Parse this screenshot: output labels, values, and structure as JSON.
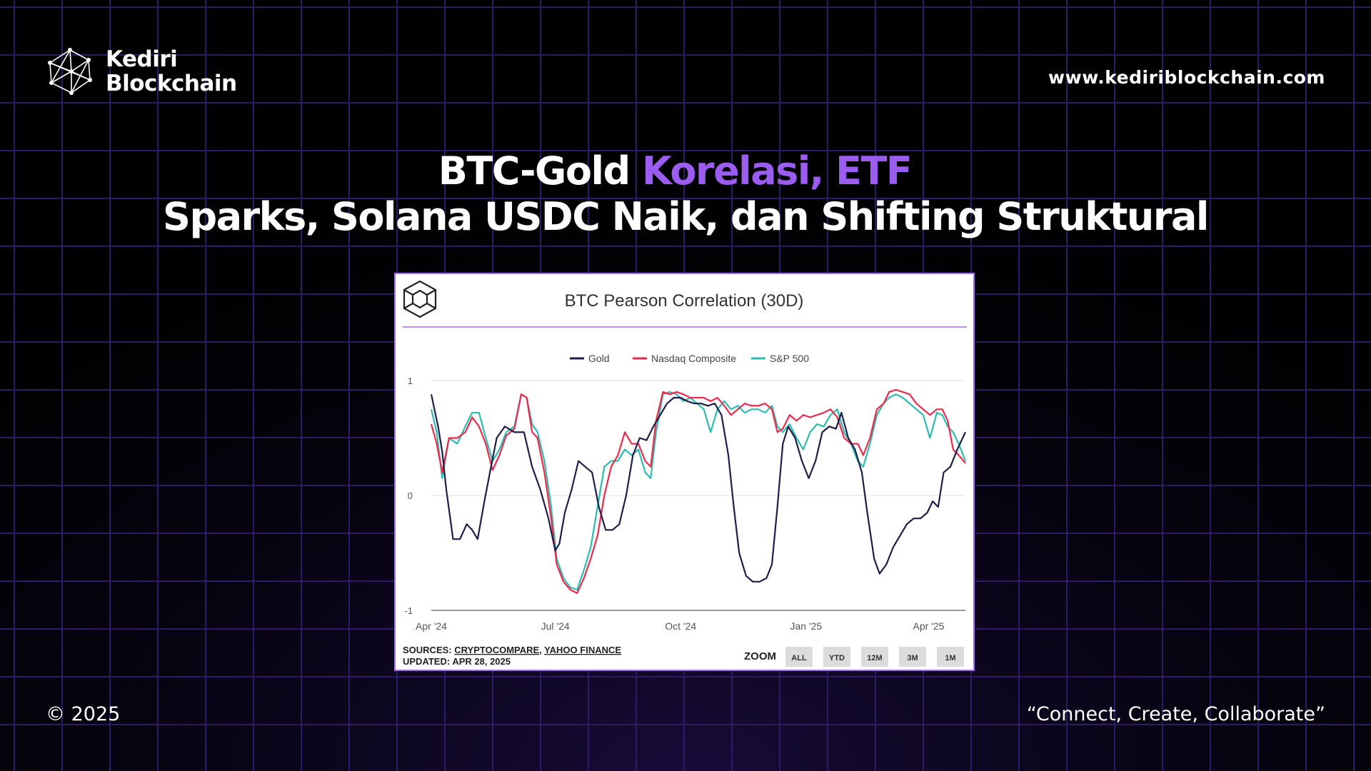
{
  "brand": {
    "name_line1": "Kediri",
    "name_line2": "Blockchain",
    "logo_icon": "network-polyhedron-icon"
  },
  "website": "www.kediriblockchain.com",
  "headline": {
    "line1_white": "BTC-Gold ",
    "line1_accent": "Korelasi, ETF",
    "line2": "Sparks, Solana USDC Naik, dan Shifting Struktural"
  },
  "footer": {
    "copyright": "© 2025",
    "tagline": "“Connect, Create, Collaborate”"
  },
  "colors": {
    "accent": "#9b5cf0",
    "background": "#000000",
    "grid": "#2e1b66",
    "card_border": "#a66bf0"
  },
  "chart_data": {
    "type": "line",
    "title": "BTC Pearson Correlation (30D)",
    "x_labels": [
      "Apr '24",
      "Jul '24",
      "Oct '24",
      "Jan '25",
      "Apr '25"
    ],
    "x_label_dates": [
      "2024-04-01",
      "2024-07-01",
      "2024-10-01",
      "2025-01-01",
      "2025-04-01"
    ],
    "x_range": [
      "2024-04-01",
      "2025-04-28"
    ],
    "y_ticks": [
      1,
      0,
      -1
    ],
    "ylim": [
      -1,
      1
    ],
    "legend_position": "top-center",
    "sources_prefix": "SOURCES: ",
    "sources": [
      "CRYPTOCOMPARE",
      "YAHOO FINANCE"
    ],
    "updated": "UPDATED: APR 28, 2025",
    "zoom_label": "ZOOM",
    "zoom_buttons": [
      "ALL",
      "YTD",
      "12M",
      "3M",
      "1M"
    ],
    "series": [
      {
        "name": "Gold",
        "color": "#1e1e4a",
        "points": [
          [
            "2024-04-01",
            0.88
          ],
          [
            "2024-04-06",
            0.6
          ],
          [
            "2024-04-09",
            0.38
          ],
          [
            "2024-04-12",
            0.05
          ],
          [
            "2024-04-17",
            -0.38
          ],
          [
            "2024-04-22",
            -0.38
          ],
          [
            "2024-04-27",
            -0.25
          ],
          [
            "2024-05-01",
            -0.3
          ],
          [
            "2024-05-05",
            -0.38
          ],
          [
            "2024-05-10",
            -0.05
          ],
          [
            "2024-05-14",
            0.2
          ],
          [
            "2024-05-19",
            0.5
          ],
          [
            "2024-05-25",
            0.6
          ],
          [
            "2024-06-01",
            0.55
          ],
          [
            "2024-06-08",
            0.55
          ],
          [
            "2024-06-14",
            0.25
          ],
          [
            "2024-06-20",
            0.05
          ],
          [
            "2024-06-26",
            -0.2
          ],
          [
            "2024-07-01",
            -0.48
          ],
          [
            "2024-07-04",
            -0.42
          ],
          [
            "2024-07-08",
            -0.15
          ],
          [
            "2024-07-13",
            0.05
          ],
          [
            "2024-07-18",
            0.3
          ],
          [
            "2024-07-23",
            0.25
          ],
          [
            "2024-07-28",
            0.2
          ],
          [
            "2024-08-02",
            -0.1
          ],
          [
            "2024-08-07",
            -0.3
          ],
          [
            "2024-08-12",
            -0.3
          ],
          [
            "2024-08-17",
            -0.25
          ],
          [
            "2024-08-22",
            0.0
          ],
          [
            "2024-08-27",
            0.35
          ],
          [
            "2024-09-01",
            0.5
          ],
          [
            "2024-09-06",
            0.48
          ],
          [
            "2024-09-11",
            0.6
          ],
          [
            "2024-09-16",
            0.7
          ],
          [
            "2024-09-21",
            0.8
          ],
          [
            "2024-09-26",
            0.85
          ],
          [
            "2024-10-01",
            0.85
          ],
          [
            "2024-10-06",
            0.82
          ],
          [
            "2024-10-11",
            0.8
          ],
          [
            "2024-10-16",
            0.8
          ],
          [
            "2024-10-21",
            0.78
          ],
          [
            "2024-10-26",
            0.8
          ],
          [
            "2024-10-31",
            0.7
          ],
          [
            "2024-11-05",
            0.35
          ],
          [
            "2024-11-09",
            -0.1
          ],
          [
            "2024-11-13",
            -0.5
          ],
          [
            "2024-11-18",
            -0.7
          ],
          [
            "2024-11-23",
            -0.75
          ],
          [
            "2024-11-28",
            -0.75
          ],
          [
            "2024-12-03",
            -0.72
          ],
          [
            "2024-12-07",
            -0.6
          ],
          [
            "2024-12-11",
            -0.1
          ],
          [
            "2024-12-15",
            0.45
          ],
          [
            "2024-12-19",
            0.6
          ],
          [
            "2024-12-24",
            0.5
          ],
          [
            "2024-12-29",
            0.3
          ],
          [
            "2025-01-03",
            0.15
          ],
          [
            "2025-01-08",
            0.3
          ],
          [
            "2025-01-13",
            0.55
          ],
          [
            "2025-01-18",
            0.6
          ],
          [
            "2025-01-23",
            0.58
          ],
          [
            "2025-01-27",
            0.72
          ],
          [
            "2025-02-01",
            0.5
          ],
          [
            "2025-02-06",
            0.4
          ],
          [
            "2025-02-11",
            0.2
          ],
          [
            "2025-02-15",
            -0.15
          ],
          [
            "2025-02-20",
            -0.55
          ],
          [
            "2025-02-24",
            -0.68
          ],
          [
            "2025-03-01",
            -0.6
          ],
          [
            "2025-03-06",
            -0.45
          ],
          [
            "2025-03-11",
            -0.35
          ],
          [
            "2025-03-16",
            -0.25
          ],
          [
            "2025-03-21",
            -0.2
          ],
          [
            "2025-03-26",
            -0.2
          ],
          [
            "2025-03-31",
            -0.15
          ],
          [
            "2025-04-04",
            -0.05
          ],
          [
            "2025-04-08",
            -0.1
          ],
          [
            "2025-04-12",
            0.2
          ],
          [
            "2025-04-17",
            0.25
          ],
          [
            "2025-04-22",
            0.4
          ],
          [
            "2025-04-28",
            0.55
          ]
        ]
      },
      {
        "name": "Nasdaq Composite",
        "color": "#ee2a4c",
        "points": [
          [
            "2024-04-01",
            0.62
          ],
          [
            "2024-04-05",
            0.45
          ],
          [
            "2024-04-09",
            0.2
          ],
          [
            "2024-04-14",
            0.5
          ],
          [
            "2024-04-20",
            0.5
          ],
          [
            "2024-04-26",
            0.55
          ],
          [
            "2024-05-01",
            0.68
          ],
          [
            "2024-05-06",
            0.6
          ],
          [
            "2024-05-11",
            0.45
          ],
          [
            "2024-05-16",
            0.22
          ],
          [
            "2024-05-21",
            0.35
          ],
          [
            "2024-05-26",
            0.52
          ],
          [
            "2024-06-01",
            0.58
          ],
          [
            "2024-06-06",
            0.88
          ],
          [
            "2024-06-10",
            0.85
          ],
          [
            "2024-06-14",
            0.55
          ],
          [
            "2024-06-18",
            0.5
          ],
          [
            "2024-06-23",
            0.2
          ],
          [
            "2024-06-28",
            -0.2
          ],
          [
            "2024-07-02",
            -0.6
          ],
          [
            "2024-07-07",
            -0.75
          ],
          [
            "2024-07-12",
            -0.82
          ],
          [
            "2024-07-17",
            -0.85
          ],
          [
            "2024-07-22",
            -0.72
          ],
          [
            "2024-07-27",
            -0.55
          ],
          [
            "2024-08-01",
            -0.35
          ],
          [
            "2024-08-06",
            0.0
          ],
          [
            "2024-08-11",
            0.25
          ],
          [
            "2024-08-16",
            0.35
          ],
          [
            "2024-08-21",
            0.55
          ],
          [
            "2024-08-26",
            0.45
          ],
          [
            "2024-08-31",
            0.45
          ],
          [
            "2024-09-05",
            0.3
          ],
          [
            "2024-09-09",
            0.25
          ],
          [
            "2024-09-13",
            0.65
          ],
          [
            "2024-09-18",
            0.9
          ],
          [
            "2024-09-23",
            0.88
          ],
          [
            "2024-09-28",
            0.9
          ],
          [
            "2024-10-03",
            0.88
          ],
          [
            "2024-10-08",
            0.85
          ],
          [
            "2024-10-13",
            0.85
          ],
          [
            "2024-10-18",
            0.85
          ],
          [
            "2024-10-23",
            0.82
          ],
          [
            "2024-10-28",
            0.85
          ],
          [
            "2024-11-02",
            0.78
          ],
          [
            "2024-11-07",
            0.7
          ],
          [
            "2024-11-12",
            0.75
          ],
          [
            "2024-11-17",
            0.8
          ],
          [
            "2024-11-22",
            0.78
          ],
          [
            "2024-11-27",
            0.78
          ],
          [
            "2024-12-02",
            0.8
          ],
          [
            "2024-12-07",
            0.75
          ],
          [
            "2024-12-11",
            0.55
          ],
          [
            "2024-12-15",
            0.58
          ],
          [
            "2024-12-20",
            0.7
          ],
          [
            "2024-12-25",
            0.65
          ],
          [
            "2024-12-30",
            0.7
          ],
          [
            "2025-01-04",
            0.68
          ],
          [
            "2025-01-09",
            0.7
          ],
          [
            "2025-01-14",
            0.72
          ],
          [
            "2025-01-19",
            0.75
          ],
          [
            "2025-01-24",
            0.68
          ],
          [
            "2025-01-29",
            0.5
          ],
          [
            "2025-02-03",
            0.45
          ],
          [
            "2025-02-08",
            0.45
          ],
          [
            "2025-02-12",
            0.35
          ],
          [
            "2025-02-17",
            0.5
          ],
          [
            "2025-02-22",
            0.75
          ],
          [
            "2025-02-27",
            0.8
          ],
          [
            "2025-03-03",
            0.9
          ],
          [
            "2025-03-08",
            0.92
          ],
          [
            "2025-03-13",
            0.9
          ],
          [
            "2025-03-18",
            0.88
          ],
          [
            "2025-03-23",
            0.8
          ],
          [
            "2025-03-28",
            0.75
          ],
          [
            "2025-04-02",
            0.7
          ],
          [
            "2025-04-07",
            0.75
          ],
          [
            "2025-04-11",
            0.75
          ],
          [
            "2025-04-15",
            0.65
          ],
          [
            "2025-04-19",
            0.4
          ],
          [
            "2025-04-23",
            0.35
          ],
          [
            "2025-04-28",
            0.28
          ]
        ]
      },
      {
        "name": "S&P 500",
        "color": "#2cbcb0",
        "points": [
          [
            "2024-04-01",
            0.75
          ],
          [
            "2024-04-05",
            0.55
          ],
          [
            "2024-04-09",
            0.15
          ],
          [
            "2024-04-14",
            0.5
          ],
          [
            "2024-04-20",
            0.45
          ],
          [
            "2024-04-26",
            0.6
          ],
          [
            "2024-05-01",
            0.72
          ],
          [
            "2024-05-06",
            0.72
          ],
          [
            "2024-05-11",
            0.5
          ],
          [
            "2024-05-16",
            0.3
          ],
          [
            "2024-05-21",
            0.4
          ],
          [
            "2024-05-26",
            0.55
          ],
          [
            "2024-06-01",
            0.6
          ],
          [
            "2024-06-06",
            0.88
          ],
          [
            "2024-06-10",
            0.85
          ],
          [
            "2024-06-14",
            0.62
          ],
          [
            "2024-06-18",
            0.55
          ],
          [
            "2024-06-23",
            0.3
          ],
          [
            "2024-06-28",
            -0.1
          ],
          [
            "2024-07-02",
            -0.55
          ],
          [
            "2024-07-07",
            -0.72
          ],
          [
            "2024-07-12",
            -0.8
          ],
          [
            "2024-07-17",
            -0.82
          ],
          [
            "2024-07-22",
            -0.65
          ],
          [
            "2024-07-27",
            -0.45
          ],
          [
            "2024-08-01",
            -0.1
          ],
          [
            "2024-08-06",
            0.25
          ],
          [
            "2024-08-11",
            0.3
          ],
          [
            "2024-08-16",
            0.3
          ],
          [
            "2024-08-21",
            0.4
          ],
          [
            "2024-08-26",
            0.35
          ],
          [
            "2024-08-31",
            0.4
          ],
          [
            "2024-09-05",
            0.2
          ],
          [
            "2024-09-09",
            0.15
          ],
          [
            "2024-09-13",
            0.55
          ],
          [
            "2024-09-18",
            0.88
          ],
          [
            "2024-09-23",
            0.9
          ],
          [
            "2024-09-28",
            0.88
          ],
          [
            "2024-10-03",
            0.82
          ],
          [
            "2024-10-08",
            0.85
          ],
          [
            "2024-10-13",
            0.8
          ],
          [
            "2024-10-18",
            0.75
          ],
          [
            "2024-10-23",
            0.55
          ],
          [
            "2024-10-28",
            0.75
          ],
          [
            "2024-11-02",
            0.82
          ],
          [
            "2024-11-07",
            0.75
          ],
          [
            "2024-11-12",
            0.78
          ],
          [
            "2024-11-17",
            0.72
          ],
          [
            "2024-11-22",
            0.75
          ],
          [
            "2024-11-27",
            0.75
          ],
          [
            "2024-12-02",
            0.72
          ],
          [
            "2024-12-07",
            0.78
          ],
          [
            "2024-12-11",
            0.6
          ],
          [
            "2024-12-15",
            0.55
          ],
          [
            "2024-12-20",
            0.62
          ],
          [
            "2024-12-25",
            0.5
          ],
          [
            "2024-12-30",
            0.4
          ],
          [
            "2025-01-04",
            0.55
          ],
          [
            "2025-01-09",
            0.62
          ],
          [
            "2025-01-14",
            0.6
          ],
          [
            "2025-01-19",
            0.7
          ],
          [
            "2025-01-24",
            0.75
          ],
          [
            "2025-01-29",
            0.55
          ],
          [
            "2025-02-03",
            0.45
          ],
          [
            "2025-02-08",
            0.3
          ],
          [
            "2025-02-12",
            0.25
          ],
          [
            "2025-02-17",
            0.45
          ],
          [
            "2025-02-22",
            0.7
          ],
          [
            "2025-02-27",
            0.8
          ],
          [
            "2025-03-03",
            0.85
          ],
          [
            "2025-03-08",
            0.88
          ],
          [
            "2025-03-13",
            0.85
          ],
          [
            "2025-03-18",
            0.8
          ],
          [
            "2025-03-23",
            0.75
          ],
          [
            "2025-03-28",
            0.7
          ],
          [
            "2025-04-02",
            0.5
          ],
          [
            "2025-04-07",
            0.72
          ],
          [
            "2025-04-11",
            0.7
          ],
          [
            "2025-04-15",
            0.6
          ],
          [
            "2025-04-19",
            0.55
          ],
          [
            "2025-04-23",
            0.45
          ],
          [
            "2025-04-28",
            0.3
          ]
        ]
      }
    ]
  }
}
